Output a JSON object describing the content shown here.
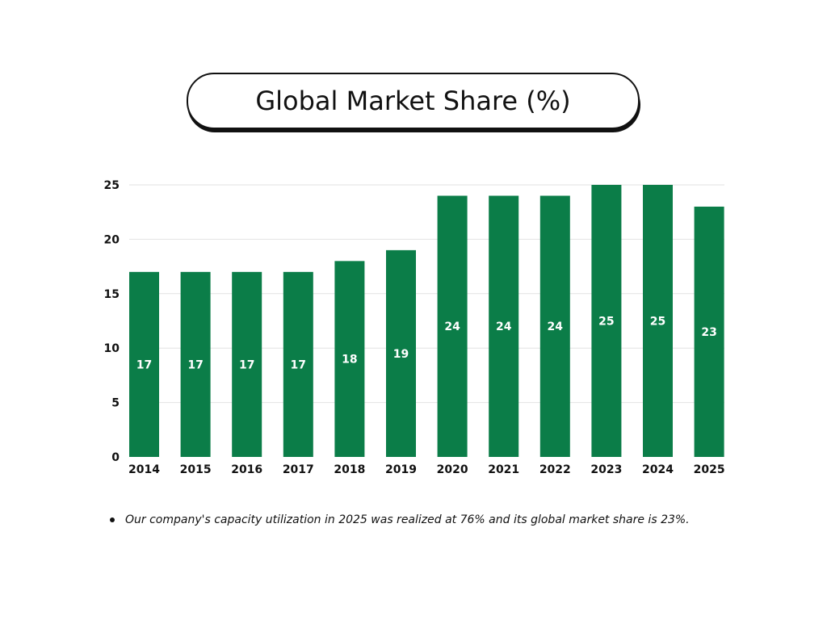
{
  "chart_data": {
    "type": "bar",
    "title": "Global Market Share (%)",
    "xlabel": "",
    "ylabel": "",
    "categories": [
      "2014",
      "2015",
      "2016",
      "2017",
      "2018",
      "2019",
      "2020",
      "2021",
      "2022",
      "2023",
      "2024",
      "2025"
    ],
    "values": [
      17,
      17,
      17,
      17,
      18,
      19,
      24,
      24,
      24,
      25,
      25,
      23
    ],
    "y_ticks": [
      0,
      5,
      10,
      15,
      20,
      25
    ],
    "ylim": [
      0,
      25
    ],
    "grid": true,
    "bar_color": "#0b7d48",
    "data_label_color": "#ffffff"
  },
  "note": {
    "text": "Our company's capacity utilization in 2025 was realized at 76% and its global market share is 23%."
  }
}
